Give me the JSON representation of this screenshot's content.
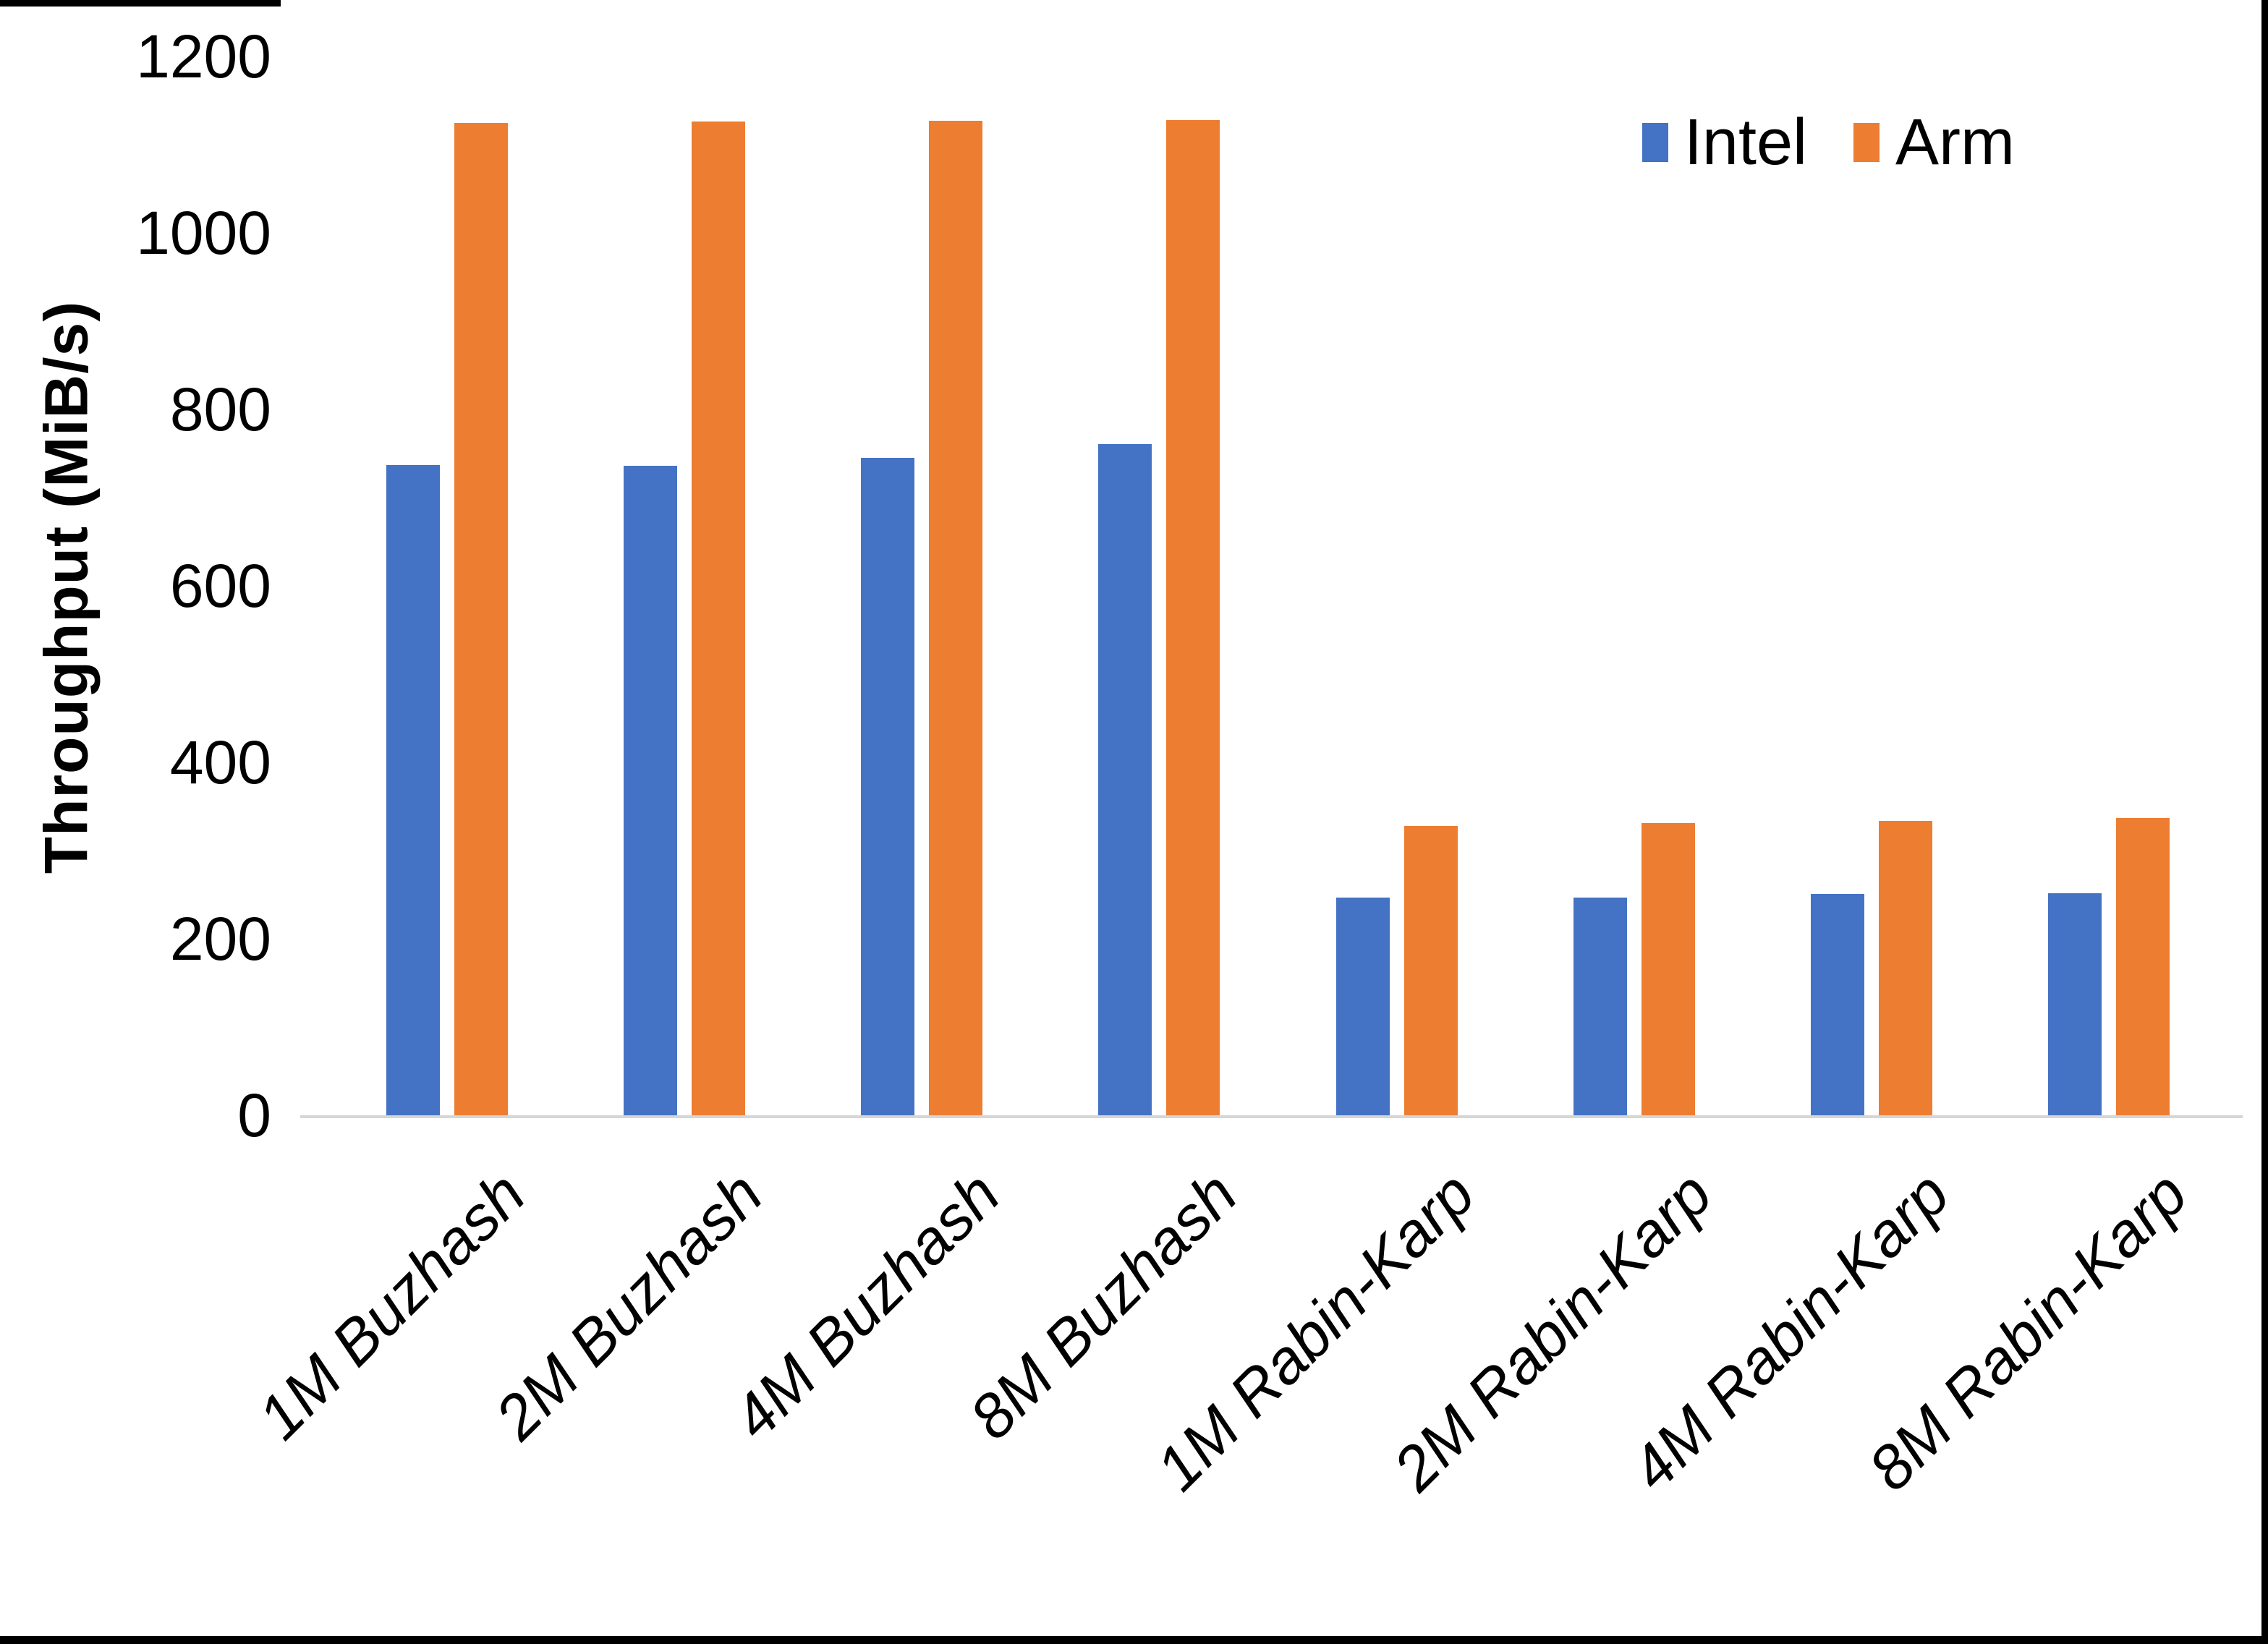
{
  "chart_data": {
    "type": "bar",
    "title": "",
    "xlabel": "",
    "ylabel": "Throughput (MiB/s)",
    "ylim": [
      0,
      1200
    ],
    "yticks": [
      0,
      200,
      400,
      600,
      800,
      1000,
      1200
    ],
    "grid": false,
    "legend_position": "top-right",
    "categories": [
      "1M Buzhash",
      "2M Buzhash",
      "4M Buzhash",
      "8M Buzhash",
      "1M Rabin-Karp",
      "2M Rabin-Karp",
      "4M Rabin-Karp",
      "8M Rabin-Karp"
    ],
    "series": [
      {
        "name": "Intel",
        "color": "#4472C4",
        "values": [
          737,
          736,
          745,
          761,
          247,
          247,
          251,
          252
        ]
      },
      {
        "name": "Arm",
        "color": "#ED7D31",
        "values": [
          1125,
          1126,
          1127,
          1128,
          328,
          331,
          334,
          337
        ]
      }
    ]
  },
  "colors": {
    "axis_line": "#d6d6d6",
    "text": "#000000",
    "background": "#ffffff"
  }
}
